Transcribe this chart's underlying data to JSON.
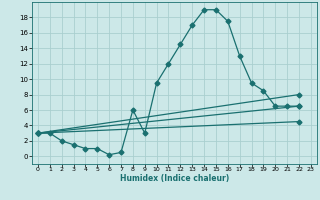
{
  "title": "",
  "xlabel": "Humidex (Indice chaleur)",
  "bg_color": "#cce8e8",
  "grid_color": "#aacfcf",
  "line_color": "#1a7070",
  "xlim": [
    -0.5,
    23.5
  ],
  "ylim": [
    -1.0,
    20.0
  ],
  "yticks": [
    0,
    2,
    4,
    6,
    8,
    10,
    12,
    14,
    16,
    18
  ],
  "xticks": [
    0,
    1,
    2,
    3,
    4,
    5,
    6,
    7,
    8,
    9,
    10,
    11,
    12,
    13,
    14,
    15,
    16,
    17,
    18,
    19,
    20,
    21,
    22,
    23
  ],
  "main_x": [
    0,
    1,
    2,
    3,
    4,
    5,
    6,
    7,
    8,
    9,
    10,
    11,
    12,
    13,
    14,
    15,
    16,
    17,
    18,
    19,
    20,
    21,
    22
  ],
  "main_y": [
    3.0,
    3.0,
    2.0,
    1.5,
    1.0,
    1.0,
    0.2,
    0.5,
    6.0,
    3.0,
    9.5,
    12.0,
    14.5,
    17.0,
    19.0,
    19.0,
    17.5,
    13.0,
    9.5,
    8.5,
    6.5,
    6.5,
    6.5
  ],
  "line1": {
    "x": [
      0,
      22
    ],
    "y": [
      3.0,
      6.5
    ]
  },
  "line2": {
    "x": [
      0,
      22
    ],
    "y": [
      3.0,
      8.0
    ]
  },
  "line3": {
    "x": [
      0,
      22
    ],
    "y": [
      3.0,
      4.5
    ]
  }
}
